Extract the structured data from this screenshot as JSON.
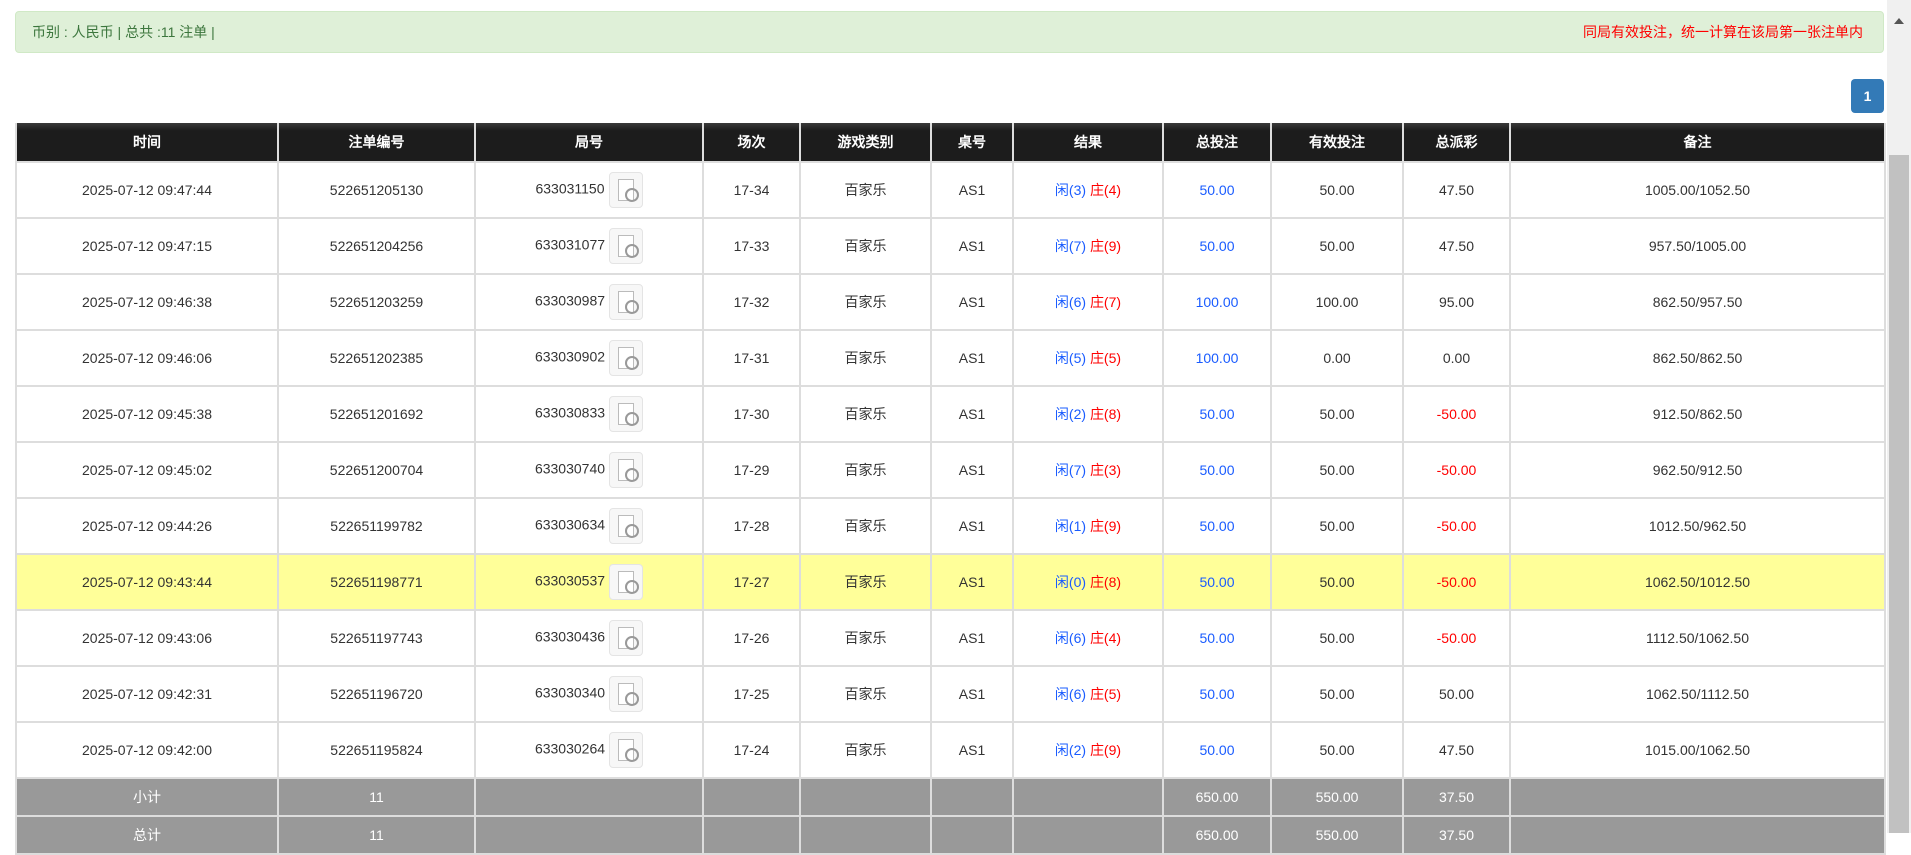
{
  "summary": {
    "text": "币别 : 人民币 | 总共 :11 注单 |",
    "note": "同局有效投注，统一计算在该局第一张注单内"
  },
  "pagination": {
    "current": "1"
  },
  "columns": [
    "时间",
    "注单编号",
    "局号",
    "场次",
    "游戏类别",
    "桌号",
    "结果",
    "总投注",
    "有效投注",
    "总派彩",
    "备注"
  ],
  "rows": [
    {
      "time": "2025-07-12 09:47:44",
      "id": "522651205130",
      "round": "633031150",
      "session": "17-34",
      "game": "百家乐",
      "table": "AS1",
      "p": "闲(3)",
      "b": "庄(4)",
      "bet": "50.00",
      "valid": "50.00",
      "payout": "47.50",
      "remark": "1005.00/1052.50"
    },
    {
      "time": "2025-07-12 09:47:15",
      "id": "522651204256",
      "round": "633031077",
      "session": "17-33",
      "game": "百家乐",
      "table": "AS1",
      "p": "闲(7)",
      "b": "庄(9)",
      "bet": "50.00",
      "valid": "50.00",
      "payout": "47.50",
      "remark": "957.50/1005.00"
    },
    {
      "time": "2025-07-12 09:46:38",
      "id": "522651203259",
      "round": "633030987",
      "session": "17-32",
      "game": "百家乐",
      "table": "AS1",
      "p": "闲(6)",
      "b": "庄(7)",
      "bet": "100.00",
      "valid": "100.00",
      "payout": "95.00",
      "remark": "862.50/957.50"
    },
    {
      "time": "2025-07-12 09:46:06",
      "id": "522651202385",
      "round": "633030902",
      "session": "17-31",
      "game": "百家乐",
      "table": "AS1",
      "p": "闲(5)",
      "b": "庄(5)",
      "bet": "100.00",
      "valid": "0.00",
      "payout": "0.00",
      "remark": "862.50/862.50"
    },
    {
      "time": "2025-07-12 09:45:38",
      "id": "522651201692",
      "round": "633030833",
      "session": "17-30",
      "game": "百家乐",
      "table": "AS1",
      "p": "闲(2)",
      "b": "庄(8)",
      "bet": "50.00",
      "valid": "50.00",
      "payout": "-50.00",
      "remark": "912.50/862.50"
    },
    {
      "time": "2025-07-12 09:45:02",
      "id": "522651200704",
      "round": "633030740",
      "session": "17-29",
      "game": "百家乐",
      "table": "AS1",
      "p": "闲(7)",
      "b": "庄(3)",
      "bet": "50.00",
      "valid": "50.00",
      "payout": "-50.00",
      "remark": "962.50/912.50"
    },
    {
      "time": "2025-07-12 09:44:26",
      "id": "522651199782",
      "round": "633030634",
      "session": "17-28",
      "game": "百家乐",
      "table": "AS1",
      "p": "闲(1)",
      "b": "庄(9)",
      "bet": "50.00",
      "valid": "50.00",
      "payout": "-50.00",
      "remark": "1012.50/962.50"
    },
    {
      "time": "2025-07-12 09:43:44",
      "id": "522651198771",
      "round": "633030537",
      "session": "17-27",
      "game": "百家乐",
      "table": "AS1",
      "p": "闲(0)",
      "b": "庄(8)",
      "bet": "50.00",
      "valid": "50.00",
      "payout": "-50.00",
      "remark": "1062.50/1012.50",
      "highlight": true
    },
    {
      "time": "2025-07-12 09:43:06",
      "id": "522651197743",
      "round": "633030436",
      "session": "17-26",
      "game": "百家乐",
      "table": "AS1",
      "p": "闲(6)",
      "b": "庄(4)",
      "bet": "50.00",
      "valid": "50.00",
      "payout": "-50.00",
      "remark": "1112.50/1062.50"
    },
    {
      "time": "2025-07-12 09:42:31",
      "id": "522651196720",
      "round": "633030340",
      "session": "17-25",
      "game": "百家乐",
      "table": "AS1",
      "p": "闲(6)",
      "b": "庄(5)",
      "bet": "50.00",
      "valid": "50.00",
      "payout": "50.00",
      "remark": "1062.50/1112.50"
    },
    {
      "time": "2025-07-12 09:42:00",
      "id": "522651195824",
      "round": "633030264",
      "session": "17-24",
      "game": "百家乐",
      "table": "AS1",
      "p": "闲(2)",
      "b": "庄(9)",
      "bet": "50.00",
      "valid": "50.00",
      "payout": "47.50",
      "remark": "1015.00/1062.50"
    }
  ],
  "subtotal": {
    "label": "小计",
    "count": "11",
    "bet": "650.00",
    "valid": "550.00",
    "payout": "37.50"
  },
  "total": {
    "label": "总计",
    "count": "11",
    "bet": "650.00",
    "valid": "550.00",
    "payout": "37.50"
  },
  "colors": {
    "player": "#1a5cff",
    "banker": "#ff0000",
    "highlight": "#ffff99",
    "header": "#1c1c1c",
    "summary": "#999999"
  }
}
